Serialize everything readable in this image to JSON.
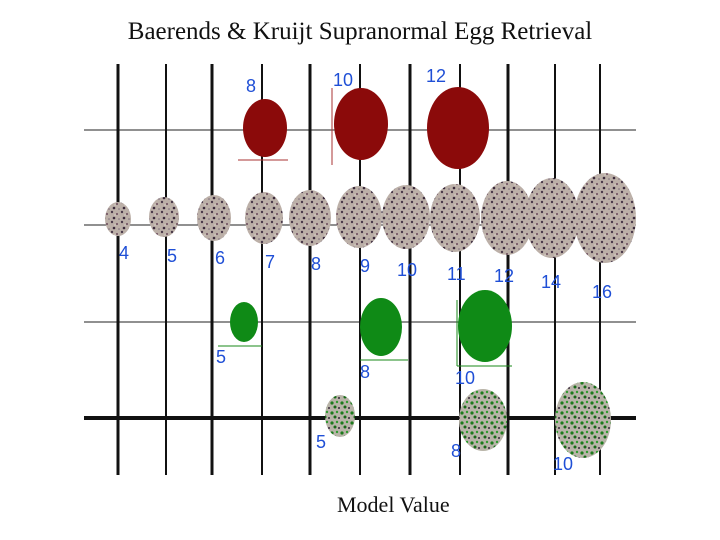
{
  "title": "Baerends & Kruijt Supranormal Egg Retrieval",
  "xlabel": "Model Value",
  "colors": {
    "brown": "#8b0a0a",
    "green": "#0f8a16",
    "number": "#1f4fd6",
    "speckled": "#b9aca4",
    "grid": "#222222"
  },
  "rows": {
    "brown": {
      "sizes": [
        "8",
        "10",
        "12"
      ]
    },
    "speckled": {
      "sizes": [
        "4",
        "5",
        "6",
        "7",
        "8",
        "9",
        "10",
        "11",
        "12",
        "14",
        "16"
      ]
    },
    "green": {
      "sizes": [
        "5",
        "8",
        "10"
      ]
    },
    "green_speckled": {
      "sizes": [
        "5",
        "8",
        "10"
      ]
    }
  }
}
